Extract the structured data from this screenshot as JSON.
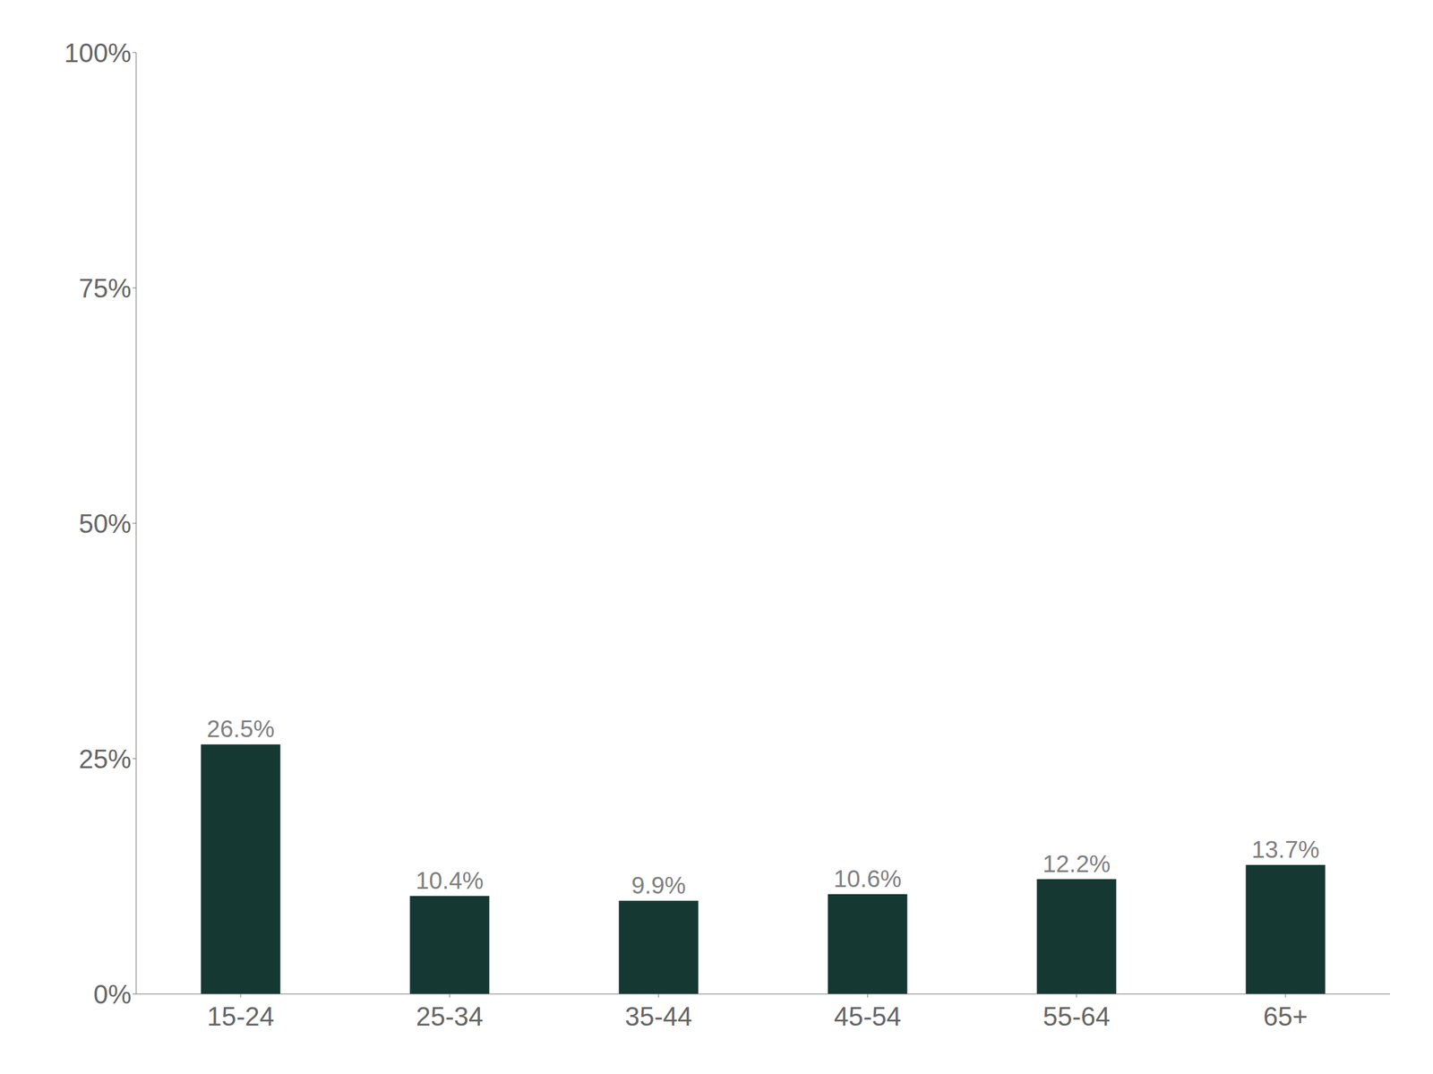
{
  "chart_data": {
    "type": "bar",
    "categories": [
      "15-24",
      "25-34",
      "35-44",
      "45-54",
      "55-64",
      "65+"
    ],
    "values": [
      26.5,
      10.4,
      9.9,
      10.6,
      12.2,
      13.7
    ],
    "value_labels": [
      "26.5%",
      "10.4%",
      "9.9%",
      "10.6%",
      "12.2%",
      "13.7%"
    ],
    "color": "#163832",
    "ylim": [
      0,
      100
    ],
    "yticks": [
      {
        "value": 0,
        "label": "0%"
      },
      {
        "value": 25,
        "label": "25%"
      },
      {
        "value": 50,
        "label": "50%"
      },
      {
        "value": 75,
        "label": "75%"
      },
      {
        "value": 100,
        "label": "100%"
      }
    ],
    "grid": false,
    "data_labels": true
  }
}
